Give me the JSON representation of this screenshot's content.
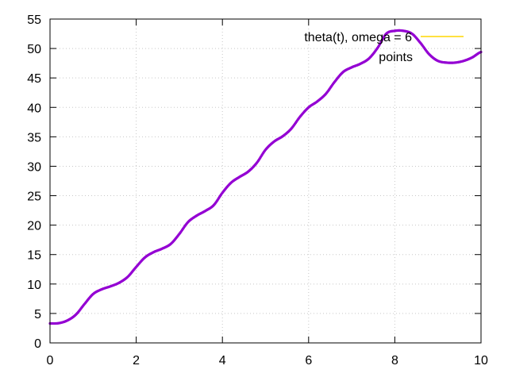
{
  "chart_data": {
    "type": "line",
    "title": "",
    "xlabel": "",
    "ylabel": "",
    "xlim": [
      0,
      10
    ],
    "ylim": [
      0,
      55
    ],
    "x_ticks": [
      0,
      2,
      4,
      6,
      8,
      10
    ],
    "y_ticks": [
      0,
      5,
      10,
      15,
      20,
      25,
      30,
      35,
      40,
      45,
      50,
      55
    ],
    "grid": true,
    "legend": {
      "position": "top-right"
    },
    "series": [
      {
        "name": "theta(t), omega = 6",
        "color": "#ffd700",
        "style": "line",
        "x": [],
        "y": []
      },
      {
        "name": "points",
        "color": "#9400d3",
        "style": "points",
        "x": [
          0.0,
          0.2,
          0.4,
          0.6,
          0.8,
          1.0,
          1.2,
          1.4,
          1.6,
          1.8,
          2.0,
          2.2,
          2.4,
          2.6,
          2.8,
          3.0,
          3.2,
          3.4,
          3.6,
          3.8,
          4.0,
          4.2,
          4.4,
          4.6,
          4.8,
          5.0,
          5.2,
          5.4,
          5.6,
          5.8,
          6.0,
          6.2,
          6.4,
          6.6,
          6.8,
          7.0,
          7.2,
          7.4,
          7.6,
          7.8,
          8.0,
          8.2,
          8.4,
          8.6,
          8.8,
          9.0,
          9.2,
          9.4,
          9.6,
          9.8,
          10.0
        ],
        "y": [
          3.3,
          3.35,
          3.8,
          4.8,
          6.6,
          8.3,
          9.1,
          9.6,
          10.2,
          11.2,
          12.9,
          14.5,
          15.4,
          16.0,
          16.8,
          18.5,
          20.5,
          21.6,
          22.4,
          23.4,
          25.5,
          27.2,
          28.2,
          29.1,
          30.6,
          32.8,
          34.2,
          35.1,
          36.4,
          38.4,
          40.0,
          41.0,
          42.3,
          44.3,
          46.0,
          46.8,
          47.4,
          48.3,
          50.1,
          52.5,
          53.0,
          53.0,
          52.5,
          50.9,
          49.0,
          47.9,
          47.6,
          47.6,
          47.9,
          48.5,
          49.4
        ]
      }
    ]
  }
}
